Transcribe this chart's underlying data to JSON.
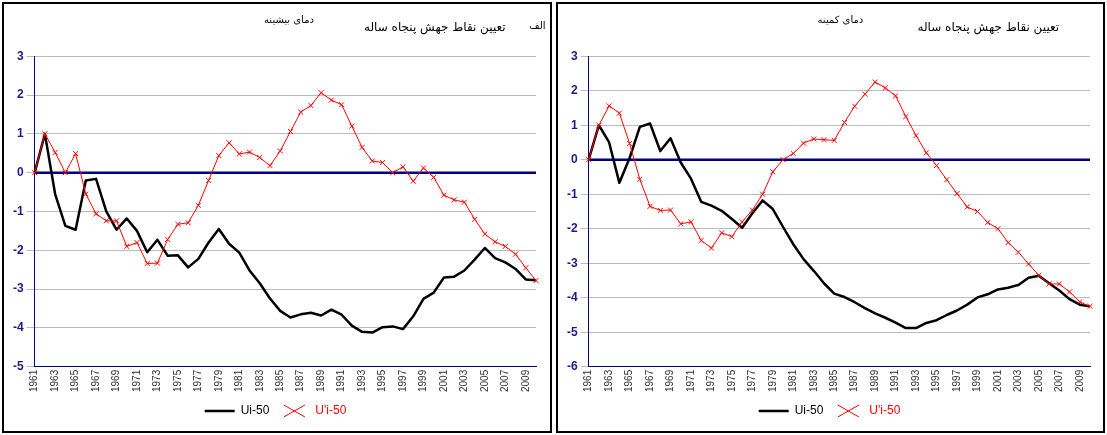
{
  "chart_data": [
    {
      "type": "line",
      "title": "تعیین نقاط جهش پنجاه ساله",
      "subtitle": "دمای بیشینه",
      "annotations": [
        "الف"
      ],
      "categories": [
        "1961",
        null,
        "1963",
        null,
        "1965",
        null,
        "1967",
        null,
        "1969",
        null,
        "1971",
        null,
        "1973",
        null,
        "1975",
        null,
        "1977",
        null,
        "1979",
        null,
        "1981",
        null,
        "1983",
        null,
        "1985",
        null,
        "1987",
        null,
        "1989",
        null,
        "1991",
        null,
        "1993",
        null,
        "1995",
        null,
        "1997",
        null,
        "1999",
        null,
        "2001",
        null,
        "2003",
        null,
        "2005",
        null,
        "2007",
        null,
        "2009",
        null
      ],
      "series": [
        {
          "name": "Ui-50",
          "color": "#000000",
          "marker": "none",
          "values": [
            0,
            1.0,
            -0.55,
            -1.37,
            -1.47,
            -0.2,
            -0.16,
            -1.0,
            -1.47,
            -1.18,
            -1.5,
            -2.05,
            -1.73,
            -2.14,
            -2.13,
            -2.44,
            -2.22,
            -1.8,
            -1.45,
            -1.83,
            -2.06,
            -2.52,
            -2.85,
            -3.24,
            -3.56,
            -3.73,
            -3.65,
            -3.61,
            -3.68,
            -3.53,
            -3.66,
            -3.94,
            -4.1,
            -4.12,
            -3.98,
            -3.96,
            -4.03,
            -3.7,
            -3.25,
            -3.09,
            -2.7,
            -2.68,
            -2.52,
            -2.24,
            -1.94,
            -2.2,
            -2.31,
            -2.48,
            -2.75,
            -2.77
          ]
        },
        {
          "name": "U'i-50",
          "color": "#ff0000",
          "marker": "cross",
          "values": [
            0,
            1.0,
            0.52,
            0.0,
            0.49,
            -0.55,
            -1.06,
            -1.24,
            -1.24,
            -1.9,
            -1.8,
            -2.34,
            -2.33,
            -1.72,
            -1.33,
            -1.29,
            -0.84,
            -0.2,
            0.44,
            0.77,
            0.48,
            0.53,
            0.39,
            0.18,
            0.56,
            1.06,
            1.56,
            1.73,
            2.06,
            1.87,
            1.75,
            1.2,
            0.65,
            0.3,
            0.26,
            0.0,
            0.15,
            -0.22,
            0.12,
            -0.12,
            -0.58,
            -0.7,
            -0.76,
            -1.2,
            -1.58,
            -1.78,
            -1.9,
            -2.1,
            -2.45,
            -2.78
          ]
        }
      ],
      "ylim": [
        -5,
        3
      ],
      "yticks": [
        -5,
        -4,
        -3,
        -2,
        -1,
        0,
        1,
        2,
        3
      ],
      "grid": "y",
      "legend": "bottom",
      "ref_lines": [
        {
          "axis": "y",
          "value": 0,
          "color": "#000080"
        }
      ]
    },
    {
      "type": "line",
      "title": "تعیین نقاط جهش پنجاه ساله",
      "subtitle": "دمای کمینه",
      "categories": [
        "1961",
        null,
        "1963",
        null,
        "1965",
        null,
        "1967",
        null,
        "1969",
        null,
        "1971",
        null,
        "1973",
        null,
        "1975",
        null,
        "1977",
        null,
        "1979",
        null,
        "1981",
        null,
        "1983",
        null,
        "1985",
        null,
        "1987",
        null,
        "1989",
        null,
        "1991",
        null,
        "1993",
        null,
        "1995",
        null,
        "1997",
        null,
        "1999",
        null,
        "2001",
        null,
        "2003",
        null,
        "2005",
        null,
        "2007",
        null,
        "2009",
        null
      ],
      "series": [
        {
          "name": "Ui-50",
          "color": "#000000",
          "marker": "none",
          "values": [
            0,
            1.0,
            0.5,
            -0.67,
            0.05,
            0.95,
            1.05,
            0.25,
            0.62,
            -0.08,
            -0.55,
            -1.22,
            -1.33,
            -1.48,
            -1.72,
            -1.97,
            -1.55,
            -1.18,
            -1.43,
            -1.95,
            -2.45,
            -2.88,
            -3.22,
            -3.58,
            -3.88,
            -3.98,
            -4.13,
            -4.3,
            -4.45,
            -4.58,
            -4.72,
            -4.88,
            -4.88,
            -4.73,
            -4.65,
            -4.5,
            -4.37,
            -4.2,
            -3.99,
            -3.9,
            -3.76,
            -3.71,
            -3.63,
            -3.42,
            -3.36,
            -3.58,
            -3.79,
            -4.04,
            -4.2,
            -4.25
          ]
        },
        {
          "name": "U'i-50",
          "color": "#ff0000",
          "marker": "cross",
          "values": [
            0,
            1.0,
            1.56,
            1.35,
            0.47,
            -0.57,
            -1.35,
            -1.47,
            -1.46,
            -1.86,
            -1.8,
            -2.34,
            -2.56,
            -2.12,
            -2.23,
            -1.8,
            -1.46,
            -1.0,
            -0.35,
            0.0,
            0.18,
            0.48,
            0.6,
            0.58,
            0.56,
            1.08,
            1.55,
            1.9,
            2.25,
            2.08,
            1.85,
            1.25,
            0.7,
            0.2,
            -0.17,
            -0.58,
            -0.98,
            -1.37,
            -1.5,
            -1.82,
            -2.0,
            -2.4,
            -2.68,
            -3.02,
            -3.35,
            -3.6,
            -3.6,
            -3.83,
            -4.12,
            -4.25
          ]
        }
      ],
      "ylim": [
        -6,
        3
      ],
      "yticks": [
        -6,
        -5,
        -4,
        -3,
        -2,
        -1,
        0,
        1,
        2,
        3
      ],
      "grid": "y",
      "legend": "bottom",
      "ref_lines": [
        {
          "axis": "y",
          "value": 0,
          "color": "#000080"
        }
      ]
    }
  ]
}
